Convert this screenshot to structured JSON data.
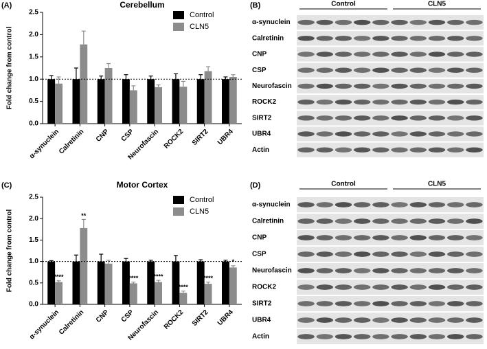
{
  "chart_data": [
    {
      "type": "bar",
      "panel_label": "(A)",
      "title": "Cerebellum",
      "y_label": "Fold change from control",
      "categories": [
        "α-synuclein",
        "Calretinin",
        "CNP",
        "CSP",
        "Neurofascin",
        "ROCK2",
        "SIRT2",
        "UBR4"
      ],
      "series": [
        {
          "name": "Control",
          "color": "#000000",
          "values": [
            1.0,
            1.0,
            1.0,
            1.0,
            1.0,
            1.0,
            1.0,
            1.0
          ],
          "errors": [
            0.08,
            0.25,
            0.07,
            0.1,
            0.07,
            0.12,
            0.1,
            0.05
          ]
        },
        {
          "name": "CLN5",
          "color": "#8c8c8c",
          "values": [
            0.9,
            1.78,
            1.25,
            0.75,
            0.82,
            0.83,
            1.18,
            1.05
          ],
          "errors": [
            0.15,
            0.3,
            0.1,
            0.1,
            0.05,
            0.12,
            0.1,
            0.05
          ]
        }
      ],
      "ylim": [
        0,
        2.5
      ],
      "yticks": [
        {
          "value": 0,
          "label": "0.0"
        },
        0.5,
        {
          "value": 1,
          "label": "1.0"
        },
        1.5,
        {
          "value": 2,
          "label": "2.0"
        },
        2.5
      ],
      "reference_line": 1,
      "legend": "top-right"
    },
    {
      "type": "bar",
      "panel_label": "(C)",
      "title": "Motor Cortex",
      "y_label": "Fold change from control",
      "categories": [
        "α-synuclein",
        "Calretinin",
        "CNP",
        "CSP",
        "Neurofascin",
        "ROCK2",
        "SIRT2",
        "UBR4"
      ],
      "series": [
        {
          "name": "Control",
          "color": "#000000",
          "values": [
            1.0,
            1.0,
            1.0,
            1.0,
            1.0,
            1.0,
            1.0,
            1.0
          ],
          "errors": [
            0.02,
            0.15,
            0.17,
            0.07,
            0.03,
            0.14,
            0.04,
            0.03
          ]
        },
        {
          "name": "CLN5",
          "color": "#8c8c8c",
          "values": [
            0.52,
            1.78,
            0.95,
            0.49,
            0.52,
            0.27,
            0.48,
            0.86
          ],
          "errors": [
            0.03,
            0.2,
            0.08,
            0.03,
            0.04,
            0.04,
            0.04,
            0.04
          ],
          "significance": [
            "****",
            "**",
            null,
            "****",
            "****",
            "****",
            "****",
            "*"
          ]
        }
      ],
      "ylim": [
        0,
        2.5
      ],
      "yticks": [
        {
          "value": 0,
          "label": "0.0"
        },
        0.5,
        {
          "value": 1,
          "label": "1.0"
        },
        1.5,
        {
          "value": 2,
          "label": "2.0"
        },
        2.5
      ],
      "reference_line": 1,
      "legend": "top-right"
    }
  ],
  "blots": [
    {
      "panel_label": "(B)",
      "groups": [
        "Control",
        "CLN5"
      ],
      "rows": [
        "α-synuclein",
        "Calretinin",
        "CNP",
        "CSP",
        "Neurofascin",
        "ROCK2",
        "SIRT2",
        "UBR4",
        "Actin"
      ]
    },
    {
      "panel_label": "(D)",
      "groups": [
        "Control",
        "CLN5"
      ],
      "rows": [
        "α-synuclein",
        "Calretinin",
        "CNP",
        "CSP",
        "Neurofascin",
        "ROCK2",
        "SIRT2",
        "UBR4",
        "Actin"
      ]
    }
  ]
}
